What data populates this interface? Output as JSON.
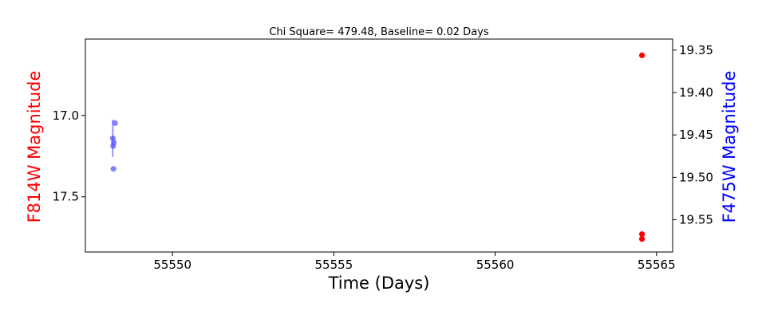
{
  "chart_data": {
    "type": "scatter",
    "title": "Chi Square= 479.48, Baseline= 0.02 Days",
    "xlabel": "Time (Days)",
    "ylabel_left": "F814W Magnitude",
    "ylabel_right": "F475W Magnitude",
    "xlim": [
      55547.3,
      55565.5
    ],
    "ylim_left": [
      17.84,
      16.53
    ],
    "ylim_right": [
      19.588,
      19.337
    ],
    "x_ticks": [
      55550,
      55555,
      55560,
      55565
    ],
    "x_tick_labels": [
      "55550",
      "55555",
      "55560",
      "55565"
    ],
    "y_left_ticks": [
      17.0,
      17.5
    ],
    "y_left_tick_labels": [
      "17.0",
      "17.5"
    ],
    "y_right_ticks": [
      19.35,
      19.4,
      19.45,
      19.5,
      19.55
    ],
    "y_right_tick_labels": [
      "19.35",
      "19.40",
      "19.45",
      "19.50",
      "19.55"
    ],
    "grid": false,
    "colors": {
      "left_axis": "#ff0000",
      "right_axis": "#0000ff",
      "f814w": "#ff0000",
      "f475w": "#4d4dff"
    },
    "series": [
      {
        "name": "F814W",
        "axis": "left",
        "points": [
          {
            "x": 55564.55,
            "y": 16.63
          },
          {
            "x": 55564.55,
            "y": 17.73
          },
          {
            "x": 55564.55,
            "y": 17.76
          }
        ]
      },
      {
        "name": "F475W",
        "axis": "right",
        "points": [
          {
            "x": 55548.15,
            "y": 19.454
          },
          {
            "x": 55548.18,
            "y": 19.459
          },
          {
            "x": 55548.16,
            "y": 19.463
          },
          {
            "x": 55548.17,
            "y": 19.49
          },
          {
            "x": 55548.22,
            "y": 19.436
          }
        ],
        "error_bar": {
          "x": 55548.15,
          "y_low": 19.432,
          "y_high": 19.476
        }
      }
    ]
  }
}
